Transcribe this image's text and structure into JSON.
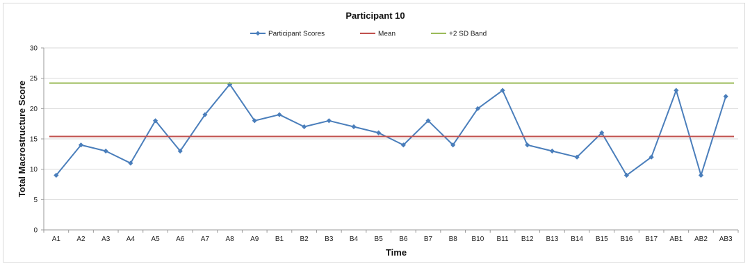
{
  "chart_data": {
    "type": "line",
    "title": "Participant 10",
    "xlabel": "Time",
    "ylabel": "Total Macrostructure Score",
    "ylim": [
      0,
      30
    ],
    "yticks": [
      0,
      5,
      10,
      15,
      20,
      25,
      30
    ],
    "grid": "horizontal",
    "legend_position": "top",
    "categories": [
      "A1",
      "A2",
      "A3",
      "A4",
      "A5",
      "A6",
      "A7",
      "A8",
      "A9",
      "B1",
      "B2",
      "B3",
      "B4",
      "B5",
      "B6",
      "B7",
      "B8",
      "B10",
      "B11",
      "B12",
      "B13",
      "B14",
      "B15",
      "B16",
      "B17",
      "AB1",
      "AB2",
      "AB3"
    ],
    "series": [
      {
        "name": "Participant Scores",
        "type": "line-markers",
        "color": "#4a7ebb",
        "values": [
          9,
          14,
          13,
          11,
          18,
          13,
          19,
          24,
          18,
          19,
          17,
          18,
          17,
          16,
          14,
          18,
          14,
          20,
          23,
          14,
          13,
          12,
          16,
          9,
          12,
          23,
          9,
          22
        ]
      },
      {
        "name": "Mean",
        "type": "constant",
        "color": "#c0504d",
        "value": 15.4
      },
      {
        "name": "+2 SD Band",
        "type": "constant",
        "color": "#9bbb59",
        "value": 24.2
      }
    ]
  }
}
